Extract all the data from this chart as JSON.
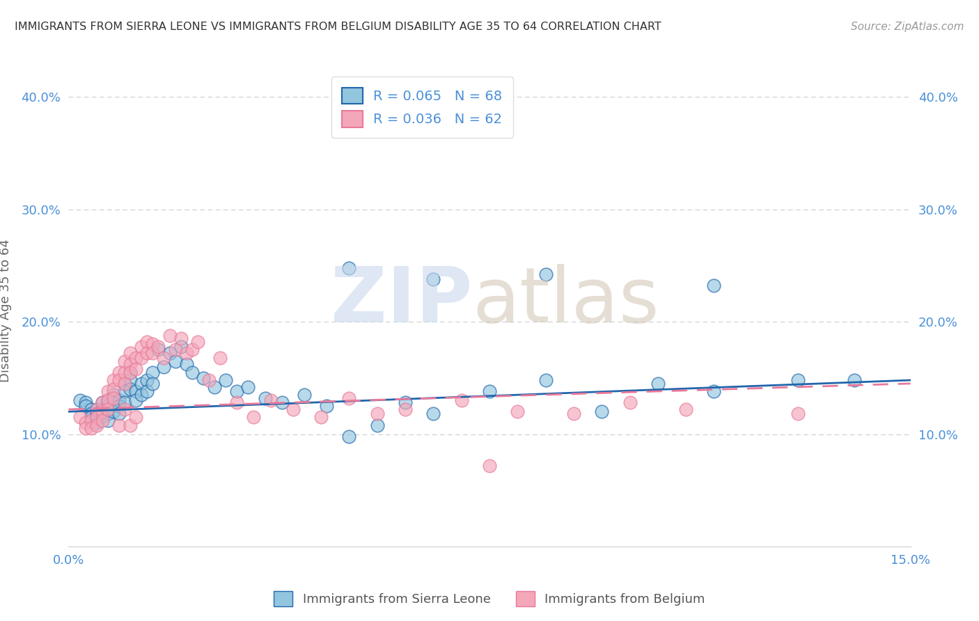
{
  "title": "IMMIGRANTS FROM SIERRA LEONE VS IMMIGRANTS FROM BELGIUM DISABILITY AGE 35 TO 64 CORRELATION CHART",
  "source": "Source: ZipAtlas.com",
  "ylabel": "Disability Age 35 to 64",
  "xlabel": "",
  "xlim": [
    0.0,
    0.15
  ],
  "ylim": [
    0.0,
    0.42
  ],
  "series1_color": "#92c5de",
  "series2_color": "#f4a7b9",
  "trend1_color": "#2166ac",
  "trend2_color": "#e8799a",
  "watermark_zip_color": "#c8d8ec",
  "watermark_atlas_color": "#d4c8b8",
  "background_color": "#ffffff",
  "grid_color": "#cccccc",
  "title_color": "#333333",
  "axis_label_color": "#666666",
  "tick_color": "#4a90d9",
  "legend1_label": "R = 0.065   N = 68",
  "legend2_label": "R = 0.036   N = 62",
  "series1_x": [
    0.002,
    0.003,
    0.003,
    0.004,
    0.004,
    0.004,
    0.005,
    0.005,
    0.005,
    0.005,
    0.006,
    0.006,
    0.006,
    0.007,
    0.007,
    0.007,
    0.007,
    0.008,
    0.008,
    0.008,
    0.009,
    0.009,
    0.009,
    0.01,
    0.01,
    0.01,
    0.011,
    0.011,
    0.011,
    0.012,
    0.012,
    0.013,
    0.013,
    0.014,
    0.014,
    0.015,
    0.015,
    0.016,
    0.017,
    0.018,
    0.019,
    0.02,
    0.021,
    0.022,
    0.024,
    0.026,
    0.028,
    0.03,
    0.032,
    0.035,
    0.038,
    0.042,
    0.046,
    0.05,
    0.055,
    0.06,
    0.065,
    0.075,
    0.085,
    0.095,
    0.105,
    0.115,
    0.13,
    0.14,
    0.05,
    0.065,
    0.085,
    0.115
  ],
  "series1_y": [
    0.13,
    0.128,
    0.125,
    0.122,
    0.118,
    0.115,
    0.122,
    0.118,
    0.114,
    0.11,
    0.128,
    0.122,
    0.116,
    0.13,
    0.125,
    0.118,
    0.112,
    0.135,
    0.128,
    0.12,
    0.13,
    0.125,
    0.118,
    0.145,
    0.138,
    0.128,
    0.155,
    0.148,
    0.14,
    0.138,
    0.13,
    0.145,
    0.135,
    0.148,
    0.138,
    0.155,
    0.145,
    0.175,
    0.16,
    0.172,
    0.165,
    0.178,
    0.162,
    0.155,
    0.15,
    0.142,
    0.148,
    0.138,
    0.142,
    0.132,
    0.128,
    0.135,
    0.125,
    0.098,
    0.108,
    0.128,
    0.118,
    0.138,
    0.148,
    0.12,
    0.145,
    0.138,
    0.148,
    0.148,
    0.248,
    0.238,
    0.242,
    0.232
  ],
  "series2_x": [
    0.002,
    0.003,
    0.003,
    0.004,
    0.004,
    0.005,
    0.005,
    0.005,
    0.006,
    0.006,
    0.006,
    0.007,
    0.007,
    0.007,
    0.008,
    0.008,
    0.008,
    0.009,
    0.009,
    0.01,
    0.01,
    0.01,
    0.011,
    0.011,
    0.011,
    0.012,
    0.012,
    0.013,
    0.013,
    0.014,
    0.014,
    0.015,
    0.015,
    0.016,
    0.017,
    0.018,
    0.019,
    0.02,
    0.021,
    0.022,
    0.023,
    0.025,
    0.027,
    0.03,
    0.033,
    0.036,
    0.04,
    0.045,
    0.05,
    0.055,
    0.06,
    0.07,
    0.08,
    0.09,
    0.1,
    0.11,
    0.13,
    0.009,
    0.01,
    0.011,
    0.012,
    0.075
  ],
  "series2_y": [
    0.115,
    0.11,
    0.105,
    0.112,
    0.105,
    0.122,
    0.115,
    0.108,
    0.128,
    0.12,
    0.112,
    0.138,
    0.13,
    0.122,
    0.148,
    0.14,
    0.132,
    0.155,
    0.148,
    0.165,
    0.155,
    0.145,
    0.172,
    0.162,
    0.155,
    0.168,
    0.158,
    0.178,
    0.168,
    0.182,
    0.172,
    0.18,
    0.172,
    0.178,
    0.168,
    0.188,
    0.175,
    0.185,
    0.172,
    0.175,
    0.182,
    0.148,
    0.168,
    0.128,
    0.115,
    0.13,
    0.122,
    0.115,
    0.132,
    0.118,
    0.122,
    0.13,
    0.12,
    0.118,
    0.128,
    0.122,
    0.118,
    0.108,
    0.122,
    0.108,
    0.115,
    0.072
  ],
  "trend1_x_start": 0.0,
  "trend1_x_end": 0.15,
  "trend1_y_start": 0.12,
  "trend1_y_end": 0.148,
  "trend2_x_start": 0.0,
  "trend2_x_end": 0.15,
  "trend2_y_start": 0.122,
  "trend2_y_end": 0.145
}
